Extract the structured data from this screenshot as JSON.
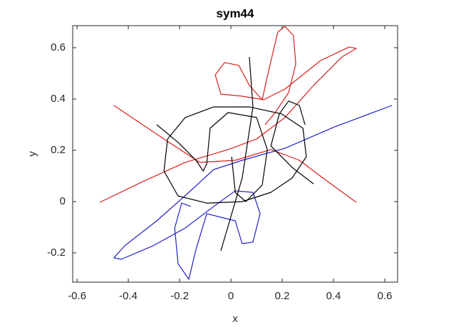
{
  "chart_data": {
    "type": "line",
    "title": "sym44",
    "xlabel": "x",
    "ylabel": "y",
    "xlim": [
      -0.617,
      0.65
    ],
    "ylim": [
      -0.314,
      0.686
    ],
    "xticks": [
      -0.6,
      -0.4,
      -0.2,
      0,
      0.2,
      0.4,
      0.6
    ],
    "yticks": [
      -0.2,
      0,
      0.2,
      0.4,
      0.6
    ],
    "grid": false,
    "series": [
      {
        "color": "#d62020",
        "x": [
          -0.511,
          -0.344,
          -0.178,
          -0.011,
          0.1,
          0.211,
          0.322,
          0.433,
          0.489,
          0.461,
          0.35,
          0.211,
          0.128,
          0.044,
          -0.039,
          -0.061,
          -0.025,
          0.031,
          0.072,
          0.122,
          0.15,
          0.183,
          0.211,
          0.244,
          0.253,
          0.225,
          0.169,
          0.133
        ],
        "values": [
          -0.003,
          0.078,
          0.153,
          0.203,
          0.244,
          0.328,
          0.453,
          0.564,
          0.597,
          0.603,
          0.55,
          0.439,
          0.397,
          0.411,
          0.419,
          0.494,
          0.542,
          0.531,
          0.453,
          0.397,
          0.522,
          0.661,
          0.683,
          0.647,
          0.536,
          0.425,
          0.342,
          0.3
        ]
      },
      {
        "color": "#d62020",
        "x": [
          -0.456,
          -0.261,
          -0.122,
          0.017,
          0.156,
          0.267,
          0.378,
          0.489
        ],
        "values": [
          0.375,
          0.244,
          0.153,
          0.161,
          0.203,
          0.161,
          0.078,
          -0.003
        ]
      },
      {
        "color": "#2020c8",
        "x": [
          0.628,
          0.406,
          0.211,
          0.044,
          -0.067,
          -0.164,
          -0.289,
          -0.414,
          -0.456,
          -0.428,
          -0.303,
          -0.178,
          -0.067,
          0.017,
          0.086,
          0.114,
          0.086,
          0.044,
          0.017,
          -0.094,
          -0.136,
          -0.164,
          -0.206,
          -0.219,
          -0.192,
          -0.156
        ],
        "values": [
          0.375,
          0.292,
          0.208,
          0.161,
          0.125,
          0.036,
          -0.075,
          -0.172,
          -0.219,
          -0.225,
          -0.172,
          -0.103,
          -0.019,
          0.042,
          0.036,
          -0.047,
          -0.158,
          -0.164,
          -0.075,
          -0.047,
          -0.186,
          -0.303,
          -0.242,
          -0.103,
          -0.006,
          -0.019
        ]
      },
      {
        "color": "#000000",
        "x": [
          -0.261,
          -0.247,
          -0.178,
          -0.067,
          0.072,
          0.197,
          0.281,
          0.294,
          0.239,
          0.156,
          0.044,
          -0.094,
          -0.206,
          -0.261
        ],
        "values": [
          0.119,
          0.244,
          0.328,
          0.369,
          0.369,
          0.342,
          0.286,
          0.175,
          0.092,
          0.036,
          0.0,
          -0.006,
          0.022,
          0.119
        ]
      },
      {
        "color": "#000000",
        "x": [
          -0.289,
          -0.206,
          -0.136,
          -0.108,
          -0.094,
          -0.081,
          -0.011,
          0.1,
          0.142,
          0.122,
          0.058,
          0.017,
          0.003
        ],
        "values": [
          0.3,
          0.231,
          0.161,
          0.119,
          0.147,
          0.286,
          0.347,
          0.328,
          0.203,
          0.064,
          0.0,
          0.036,
          0.175
        ]
      },
      {
        "color": "#000000",
        "x": [
          0.072,
          0.086,
          0.044,
          -0.039
        ],
        "values": [
          0.564,
          0.369,
          0.092,
          -0.192
        ]
      },
      {
        "color": "#000000",
        "x": [
          0.322,
          0.239,
          0.156,
          0.189,
          0.225,
          0.267,
          0.289
        ],
        "values": [
          0.069,
          0.133,
          0.217,
          0.342,
          0.392,
          0.375,
          0.3
        ]
      }
    ]
  }
}
